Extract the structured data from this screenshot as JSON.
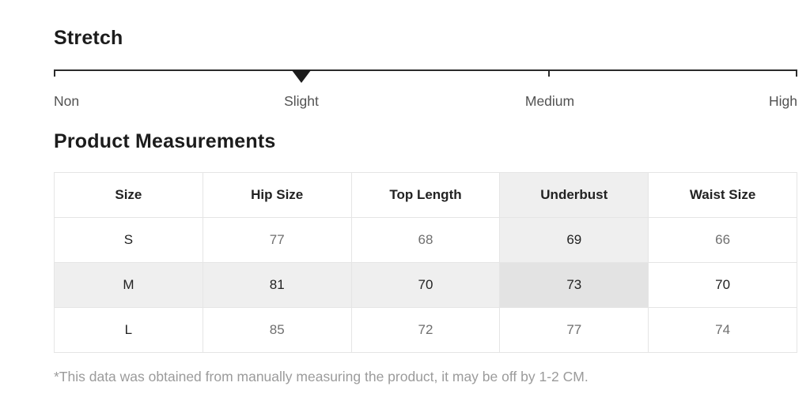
{
  "stretch": {
    "title": "Stretch",
    "levels": [
      {
        "label": "Non"
      },
      {
        "label": "Slight"
      },
      {
        "label": "Medium"
      },
      {
        "label": "High"
      }
    ],
    "selected_level": "Slight",
    "selected_index": 1
  },
  "measurements": {
    "title": "Product Measurements",
    "columns": [
      "Size",
      "Hip Size",
      "Top Length",
      "Underbust",
      "Waist Size"
    ],
    "rows": [
      {
        "size": "S",
        "hip": "77",
        "top_length": "68",
        "underbust": "69",
        "waist": "66"
      },
      {
        "size": "M",
        "hip": "81",
        "top_length": "70",
        "underbust": "73",
        "waist": "70"
      },
      {
        "size": "L",
        "hip": "85",
        "top_length": "72",
        "underbust": "77",
        "waist": "74"
      }
    ],
    "highlighted_row": "M",
    "highlighted_column": "Underbust",
    "footnote": "*This data was obtained from manually measuring the product, it may be off by 1-2 CM."
  },
  "colors": {
    "heading_text": "#1c1c1c",
    "scale_line": "#2b2b2b",
    "marker": "#1c1c1c",
    "label_gray": "#525252",
    "value_gray": "#6f6f6f",
    "value_dark": "#222222",
    "table_border": "#e5e5e5",
    "highlight_bg": "#efefef",
    "highlight_intersection_bg": "#e3e3e3",
    "footnote_gray": "#9b9b9b"
  }
}
